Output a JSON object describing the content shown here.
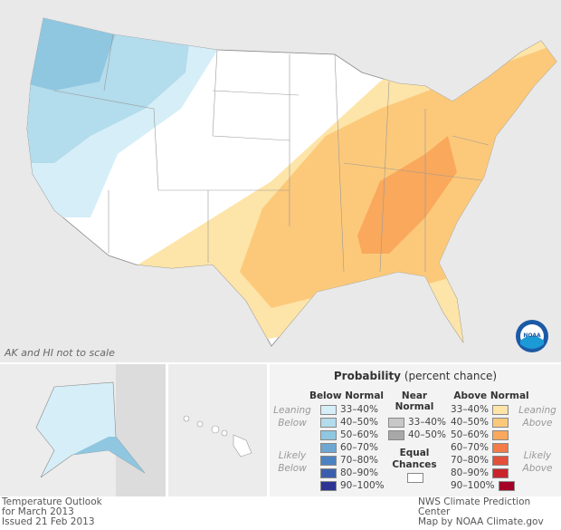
{
  "map": {
    "scale_note": "AK and HI not to scale",
    "logo_text": "NOAA"
  },
  "legend": {
    "title_bold": "Probability",
    "title_rest": " (percent chance)",
    "below": {
      "header": "Below Normal",
      "leaning": "Leaning Below",
      "likely": "Likely Below",
      "items": [
        {
          "label": "33–40%",
          "color": "#d6eef7"
        },
        {
          "label": "40–50%",
          "color": "#b3dcec"
        },
        {
          "label": "50–60%",
          "color": "#8fc6e0"
        },
        {
          "label": "60–70%",
          "color": "#6ea8d2"
        },
        {
          "label": "70–80%",
          "color": "#4d82c0"
        },
        {
          "label": "80–90%",
          "color": "#3a5eab"
        },
        {
          "label": "90–100%",
          "color": "#2d3494"
        }
      ]
    },
    "near": {
      "header": "Near Normal",
      "items": [
        {
          "label": "33–40%",
          "color": "#c8c8c8"
        },
        {
          "label": "40–50%",
          "color": "#a8a8a8"
        }
      ]
    },
    "equal": {
      "label": "Equal Chances",
      "color": "#ffffff"
    },
    "above": {
      "header": "Above Normal",
      "leaning": "Leaning Above",
      "likely": "Likely Above",
      "items": [
        {
          "label": "33–40%",
          "color": "#fde4a8"
        },
        {
          "label": "40–50%",
          "color": "#fcc97a"
        },
        {
          "label": "50–60%",
          "color": "#f9a85c"
        },
        {
          "label": "60–70%",
          "color": "#f27b48"
        },
        {
          "label": "70–80%",
          "color": "#e2503a"
        },
        {
          "label": "80–90%",
          "color": "#c9252b"
        },
        {
          "label": "90–100%",
          "color": "#a50026"
        }
      ]
    }
  },
  "footer": {
    "left": [
      "Temperature Outlook",
      "for March 2013",
      "Issued 21 Feb 2013"
    ],
    "right": [
      "NWS Climate Prediction Center",
      "Map by NOAA Climate.gov"
    ]
  }
}
